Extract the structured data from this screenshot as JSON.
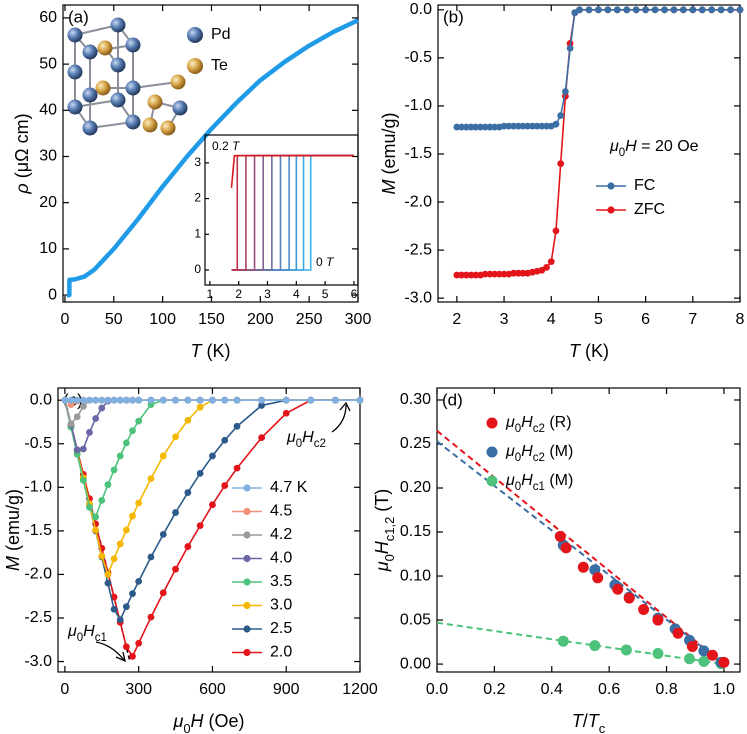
{
  "chart_data": [
    {
      "type": "line",
      "panel_label": "(a)",
      "x_label": "T (K)",
      "y_label": "ρ (μΩ cm)",
      "atoms": [
        "Pd",
        "Te"
      ],
      "x": [
        2,
        4.5,
        4.6,
        10,
        20,
        30,
        50,
        75,
        100,
        125,
        150,
        175,
        200,
        225,
        250,
        275,
        300
      ],
      "series": [
        {
          "color": "#1f9be8",
          "values": [
            0,
            0,
            3.3,
            3.4,
            4,
            5.5,
            10,
            16.5,
            23.5,
            30,
            36,
            41.5,
            46.5,
            50.5,
            54,
            57,
            59.5
          ]
        }
      ],
      "xlim": [
        -2,
        300
      ],
      "xticks": [
        0,
        50,
        100,
        150,
        200,
        250,
        300
      ],
      "ylim": [
        -1.5,
        62.8
      ],
      "yticks": [
        0,
        10,
        20,
        30,
        40,
        50,
        60
      ]
    },
    {
      "type": "line",
      "annotations": [
        "0.2 T",
        "0 T"
      ],
      "series": [
        {
          "color": "#d7191c",
          "x": [
            1.75,
            1.85,
            6
          ],
          "values": [
            2.3,
            3.2,
            3.2
          ]
        },
        {
          "color": "#c2304a",
          "x": [
            1.75,
            1.95,
            1.95,
            6
          ],
          "values": [
            0,
            0,
            3.2,
            3.2
          ]
        },
        {
          "color": "#ac3f62",
          "x": [
            1.75,
            2.25,
            2.25,
            6
          ],
          "values": [
            0,
            0,
            3.2,
            3.2
          ]
        },
        {
          "color": "#965078",
          "x": [
            1.75,
            2.55,
            2.55,
            6
          ],
          "values": [
            0,
            0,
            3.2,
            3.2
          ]
        },
        {
          "color": "#80608e",
          "x": [
            1.75,
            2.85,
            2.85,
            6
          ],
          "values": [
            0,
            0,
            3.2,
            3.2
          ]
        },
        {
          "color": "#6a70a4",
          "x": [
            1.75,
            3.15,
            3.15,
            6
          ],
          "values": [
            0,
            0,
            3.2,
            3.2
          ]
        },
        {
          "color": "#5680b8",
          "x": [
            1.75,
            3.45,
            3.45,
            6
          ],
          "values": [
            0,
            0,
            3.2,
            3.2
          ]
        },
        {
          "color": "#4a8ec8",
          "x": [
            1.75,
            3.75,
            3.75,
            6
          ],
          "values": [
            0,
            0,
            3.2,
            3.2
          ]
        },
        {
          "color": "#409bd6",
          "x": [
            1.75,
            4.0,
            4.0,
            6
          ],
          "values": [
            0,
            0,
            3.2,
            3.2
          ]
        },
        {
          "color": "#3ca8e2",
          "x": [
            1.75,
            4.25,
            4.25,
            6
          ],
          "values": [
            0,
            0,
            3.2,
            3.2
          ]
        },
        {
          "color": "#3ab4ec",
          "x": [
            1.75,
            4.5,
            4.5,
            6
          ],
          "values": [
            0,
            0,
            3.2,
            3.2
          ]
        }
      ],
      "xlim": [
        0.83,
        6.14
      ],
      "xticks": [
        1,
        2,
        3,
        4,
        5,
        6
      ],
      "ylim": [
        -0.42,
        3.78
      ],
      "yticks": [
        0,
        1,
        2,
        3
      ]
    },
    {
      "type": "line",
      "markers": true,
      "panel_label": "(b)",
      "x_label": "T (K)",
      "y_label": "M (emu/g)",
      "annotations": [
        "μ0H = 20 Oe"
      ],
      "x": [
        2,
        2.1,
        2.2,
        2.3,
        2.4,
        2.5,
        2.6,
        2.7,
        2.8,
        2.9,
        3,
        3.1,
        3.2,
        3.3,
        3.4,
        3.5,
        3.6,
        3.7,
        3.8,
        3.9,
        4,
        4.1,
        4.2,
        4.3,
        4.4,
        4.5,
        4.6,
        4.8,
        5,
        5.2,
        5.4,
        5.6,
        5.8,
        6,
        6.2,
        6.4,
        6.6,
        6.8,
        7,
        7.2,
        7.4,
        7.6,
        7.8,
        8
      ],
      "series": [
        {
          "name": "FC",
          "color": "#3a6ea5",
          "values": [
            -1.22,
            -1.22,
            -1.22,
            -1.22,
            -1.22,
            -1.22,
            -1.22,
            -1.22,
            -1.22,
            -1.22,
            -1.21,
            -1.21,
            -1.21,
            -1.21,
            -1.21,
            -1.21,
            -1.21,
            -1.21,
            -1.21,
            -1.21,
            -1.21,
            -1.19,
            -1.1,
            -0.85,
            -0.4,
            -0.03,
            0,
            0,
            0,
            0,
            0,
            0,
            0,
            0,
            0,
            0,
            0,
            0,
            0,
            0,
            0,
            0,
            0,
            0
          ]
        },
        {
          "name": "ZFC",
          "color": "#e3151b",
          "values": [
            -2.76,
            -2.76,
            -2.76,
            -2.76,
            -2.76,
            -2.76,
            -2.75,
            -2.75,
            -2.75,
            -2.75,
            -2.75,
            -2.75,
            -2.74,
            -2.74,
            -2.74,
            -2.74,
            -2.73,
            -2.72,
            -2.71,
            -2.68,
            -2.62,
            -2.3,
            -1.6,
            -0.9,
            -0.35,
            -0.03,
            0,
            0,
            0,
            0,
            0,
            0,
            0,
            0,
            0,
            0,
            0,
            0,
            0,
            0,
            0,
            0,
            0,
            0
          ]
        }
      ],
      "xlim": [
        1.6,
        8
      ],
      "xticks": [
        2,
        3,
        4,
        5,
        6,
        7,
        8
      ],
      "ylim": [
        -3.04,
        0.05
      ],
      "yticks": [
        {
          "value": 0,
          "label": "0.0"
        },
        -0.5,
        {
          "value": -1,
          "label": "-1.0"
        },
        -1.5,
        {
          "value": -2,
          "label": "-2.0"
        },
        -2.5,
        {
          "value": -3,
          "label": "-3.0"
        }
      ]
    },
    {
      "type": "line",
      "markers": true,
      "panel_label": "(c)",
      "x_label": "μ0H (Oe)",
      "y_label": "M (emu/g)",
      "annotations": [
        "μ0Hc2",
        "μ0Hc1"
      ],
      "x": [
        0,
        25,
        50,
        75,
        100,
        125,
        150,
        175,
        200,
        225,
        250,
        275,
        300,
        350,
        400,
        450,
        500,
        550,
        600,
        650,
        700,
        800,
        900,
        1000,
        1100,
        1200
      ],
      "series": [
        {
          "name": "4.7 K",
          "color": "#7fb0e0",
          "values": [
            0,
            0,
            0,
            0,
            0,
            0,
            0,
            0,
            0,
            0,
            0,
            0,
            0,
            0,
            0,
            0,
            0,
            0,
            0,
            0,
            0,
            0,
            0,
            0,
            0,
            0
          ]
        },
        {
          "name": "4.5",
          "color": "#f0907a",
          "values": [
            0,
            -0.05,
            -0.01,
            0,
            0,
            0,
            0,
            0,
            0,
            0,
            0,
            0,
            0,
            0,
            0,
            0,
            0,
            0,
            0,
            0,
            0,
            0,
            0,
            0,
            0,
            0
          ]
        },
        {
          "name": "4.2",
          "color": "#9a9a9a",
          "values": [
            0,
            -0.27,
            -0.19,
            -0.07,
            0,
            0,
            0,
            0,
            0,
            0,
            0,
            0,
            0,
            0,
            0,
            0,
            0,
            0,
            0,
            0,
            0,
            0,
            0,
            0,
            0,
            0
          ]
        },
        {
          "name": "4.0",
          "color": "#6a67a6",
          "values": [
            0,
            -0.28,
            -0.57,
            -0.56,
            -0.37,
            -0.21,
            -0.09,
            -0.01,
            0,
            0,
            0,
            0,
            0,
            0,
            0,
            0,
            0,
            0,
            0,
            0,
            0,
            0,
            0,
            0,
            0,
            0
          ]
        },
        {
          "name": "3.5",
          "color": "#4cc27a",
          "values": [
            0,
            -0.31,
            -0.62,
            -0.92,
            -1.23,
            -1.34,
            -1.15,
            -0.97,
            -0.8,
            -0.64,
            -0.49,
            -0.35,
            -0.24,
            -0.05,
            0,
            0,
            0,
            0,
            0,
            0,
            0,
            0,
            0,
            0,
            0,
            0
          ]
        },
        {
          "name": "3.0",
          "color": "#f5b800",
          "values": [
            0,
            -0.3,
            -0.6,
            -0.89,
            -1.19,
            -1.49,
            -1.79,
            -2.0,
            -1.82,
            -1.65,
            -1.49,
            -1.33,
            -1.18,
            -0.9,
            -0.64,
            -0.42,
            -0.23,
            -0.08,
            0,
            0,
            0,
            0,
            0,
            0,
            0,
            0
          ]
        },
        {
          "name": "2.5",
          "color": "#2c5a8a",
          "values": [
            0,
            -0.3,
            -0.6,
            -0.9,
            -1.2,
            -1.5,
            -1.8,
            -2.1,
            -2.4,
            -2.52,
            -2.37,
            -2.22,
            -2.08,
            -1.8,
            -1.54,
            -1.29,
            -1.06,
            -0.84,
            -0.64,
            -0.46,
            -0.3,
            -0.06,
            0,
            0,
            0,
            0
          ]
        },
        {
          "name": "2.0",
          "color": "#e3151b",
          "values": [
            0,
            -0.28,
            -0.57,
            -0.85,
            -1.13,
            -1.42,
            -1.7,
            -1.98,
            -2.26,
            -2.55,
            -2.83,
            -2.94,
            -2.79,
            -2.49,
            -2.21,
            -1.94,
            -1.68,
            -1.44,
            -1.2,
            -0.98,
            -0.78,
            -0.43,
            -0.15,
            0,
            0,
            0
          ]
        }
      ],
      "xlim": [
        -28,
        1200
      ],
      "xticks": [
        0,
        300,
        600,
        900,
        1200
      ],
      "ylim": [
        -3.12,
        0.14
      ],
      "yticks": [
        {
          "value": 0,
          "label": "0.0"
        },
        -0.5,
        {
          "value": -1,
          "label": "-1.0"
        },
        -1.5,
        {
          "value": -2,
          "label": "-2.0"
        },
        -2.5,
        {
          "value": -3,
          "label": "-3.0"
        }
      ]
    },
    {
      "type": "scatter",
      "panel_label": "(d)",
      "x_label": "T/Tc",
      "y_label": "μ0Hc1,2 (T)",
      "series": [
        {
          "name": "μ0Hc2 (R)",
          "color": "#e3151b",
          "x": [
            0.43,
            0.45,
            0.51,
            0.56,
            0.63,
            0.67,
            0.72,
            0.77,
            0.84,
            0.89,
            0.96,
            1.0
          ],
          "values": [
            0.145,
            0.132,
            0.11,
            0.098,
            0.085,
            0.075,
            0.062,
            0.05,
            0.035,
            0.02,
            0.01,
            0.002
          ]
        },
        {
          "name": "μ0Hc2 (M)",
          "color": "#3a6ea5",
          "x": [
            0.44,
            0.55,
            0.62,
            0.67,
            0.77,
            0.83,
            0.88,
            0.93,
            0.99
          ],
          "values": [
            0.135,
            0.107,
            0.09,
            0.076,
            0.052,
            0.04,
            0.027,
            0.015,
            0.002
          ]
        },
        {
          "name": "μ0Hc1 (M)",
          "color": "#4cc27a",
          "x": [
            0.44,
            0.55,
            0.66,
            0.77,
            0.88,
            0.93,
            0.99
          ],
          "values": [
            0.026,
            0.021,
            0.016,
            0.012,
            0.006,
            0.003,
            0.0006
          ]
        }
      ],
      "fits": [
        {
          "color": "#e3151b",
          "x": [
            0,
            1
          ],
          "values": [
            0.265,
            0
          ]
        },
        {
          "color": "#3a6ea5",
          "x": [
            0,
            1
          ],
          "values": [
            0.253,
            0
          ]
        },
        {
          "color": "#4cc27a",
          "x": [
            0,
            1
          ],
          "values": [
            0.047,
            0
          ]
        }
      ],
      "xlim": [
        0,
        1.056
      ],
      "xticks": [
        {
          "value": 0,
          "label": "0.0"
        },
        0.2,
        0.4,
        0.6,
        0.8,
        {
          "value": 1,
          "label": "1.0"
        }
      ],
      "ylim": [
        -0.009,
        0.3136
      ],
      "yticks": [
        {
          "value": 0,
          "label": "0.00"
        },
        0.05,
        {
          "value": 0.1,
          "label": "0.10"
        },
        0.15,
        {
          "value": 0.2,
          "label": "0.20"
        },
        0.25,
        {
          "value": 0.3,
          "label": "0.30"
        }
      ]
    }
  ]
}
